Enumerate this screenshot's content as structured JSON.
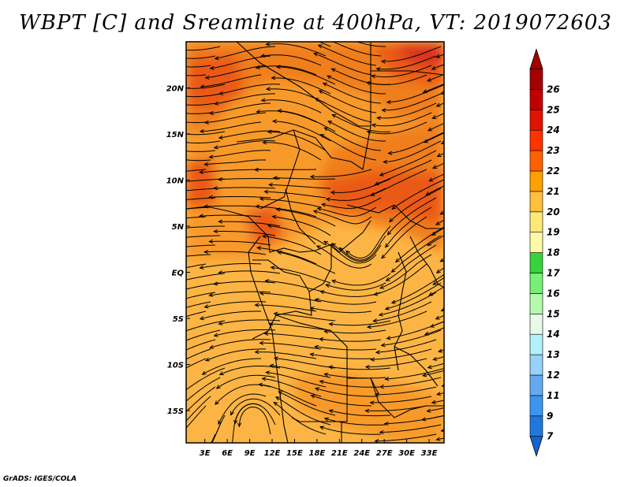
{
  "title": "WBPT [C] and Sreamline at 400hPa, VT: 2019072603",
  "credit": "GrADS: IGES/COLA",
  "map": {
    "lat_labels": [
      {
        "label": "20N",
        "lat": 20
      },
      {
        "label": "15N",
        "lat": 15
      },
      {
        "label": "10N",
        "lat": 10
      },
      {
        "label": "5N",
        "lat": 5
      },
      {
        "label": "EQ",
        "lat": 0
      },
      {
        "label": "5S",
        "lat": -5
      },
      {
        "label": "10S",
        "lat": -10
      },
      {
        "label": "15S",
        "lat": -15
      }
    ],
    "lon_labels": [
      {
        "label": "3E",
        "lon": 3
      },
      {
        "label": "6E",
        "lon": 6
      },
      {
        "label": "9E",
        "lon": 9
      },
      {
        "label": "12E",
        "lon": 12
      },
      {
        "label": "15E",
        "lon": 15
      },
      {
        "label": "18E",
        "lon": 18
      },
      {
        "label": "21E",
        "lon": 21
      },
      {
        "label": "24E",
        "lon": 24
      },
      {
        "label": "27E",
        "lon": 27
      },
      {
        "label": "30E",
        "lon": 30
      },
      {
        "label": "33E",
        "lon": 33
      }
    ],
    "lon_range": [
      0.5,
      35
    ],
    "lat_range": [
      -18.5,
      25
    ],
    "colors": {
      "base": "#fcb544",
      "level21": "#f89a2a",
      "level22": "#f07e1f",
      "level23": "#ea5a18",
      "level24": "#d9331a"
    }
  },
  "colorbar": {
    "levels": [
      "7",
      "9",
      "11",
      "12",
      "13",
      "14",
      "15",
      "16",
      "17",
      "18",
      "19",
      "20",
      "21",
      "22",
      "23",
      "24",
      "25",
      "26"
    ],
    "colors": [
      "#1463d2",
      "#1f78dc",
      "#3c96f0",
      "#64aaf0",
      "#96d2fa",
      "#b4f0fa",
      "#e6fae6",
      "#b4faaa",
      "#78f078",
      "#37d23c",
      "#fffaaa",
      "#ffe878",
      "#ffc03c",
      "#ffa000",
      "#ff6000",
      "#ff3200",
      "#e11400",
      "#c00000",
      "#a50000"
    ]
  }
}
